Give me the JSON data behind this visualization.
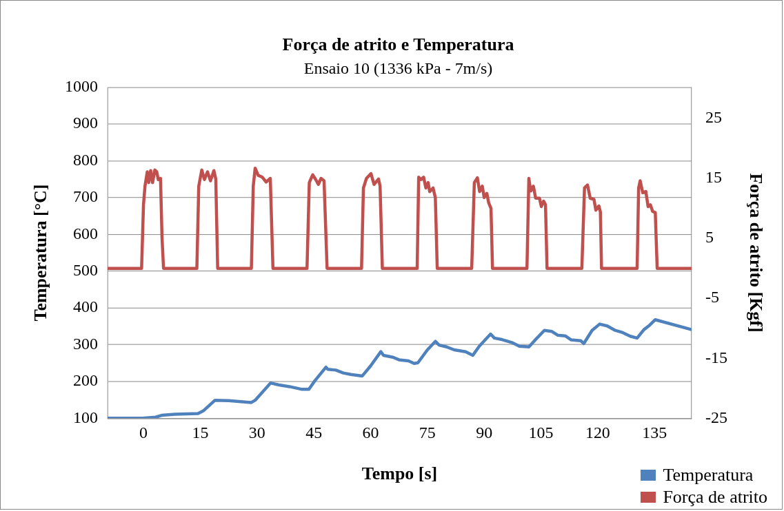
{
  "chart_data": {
    "type": "line",
    "title": "Força de atrito e Temperatura",
    "subtitle": "Ensaio 10 (1336 kPa - 7m/s)",
    "xlabel": "Tempo [s]",
    "ylabel": "Temperatura [°C]",
    "y2label": "Força de atrito [Kgf]",
    "xlim": [
      -9.5,
      144.8
    ],
    "xticks": [
      0,
      15,
      30,
      45,
      60,
      75,
      90,
      105,
      120,
      135
    ],
    "ylim": [
      100,
      1000
    ],
    "yticks": [
      100,
      200,
      300,
      400,
      500,
      600,
      700,
      800,
      900,
      1000
    ],
    "y2lim": [
      -25,
      30.2
    ],
    "y2ticks": [
      -25,
      -15,
      -5,
      5,
      15,
      25
    ],
    "grid": "y",
    "legend": "bottom right",
    "marker": "none",
    "line_style": "solid",
    "series": [
      {
        "name": "Temperatura",
        "color": "#4f81bd",
        "x": [
          -9.5,
          -0.3,
          3.2,
          4.8,
          8.3,
          14.4,
          15.9,
          18.9,
          22.5,
          28.5,
          29.5,
          33.6,
          35.6,
          38.6,
          41.7,
          43.7,
          45.2,
          48.2,
          48.7,
          50.8,
          52.8,
          54.8,
          57.8,
          59.9,
          62.7,
          63.4,
          65.9,
          67.5,
          70.0,
          71.5,
          72.5,
          75.0,
          77.1,
          78.1,
          80.1,
          82.1,
          85.1,
          87.0,
          88.7,
          91.7,
          92.7,
          94.7,
          97.3,
          99.3,
          101.8,
          103.3,
          105.9,
          107.9,
          109.4,
          111.4,
          113.0,
          115.5,
          116.3,
          118.5,
          120.5,
          122.5,
          124.6,
          126.6,
          128.6,
          130.4,
          132.2,
          133.7,
          135.2,
          144.8
        ],
        "values": [
          100,
          100,
          103,
          108,
          111,
          113,
          121,
          149,
          148,
          143,
          149,
          196,
          191,
          186,
          179,
          179,
          201,
          239,
          233,
          231,
          223,
          219,
          215,
          241,
          281,
          271,
          266,
          259,
          256,
          249,
          251,
          286,
          309,
          299,
          294,
          286,
          281,
          271,
          296,
          329,
          318,
          314,
          306,
          296,
          294,
          311,
          339,
          336,
          326,
          324,
          313,
          311,
          303,
          339,
          356,
          351,
          339,
          333,
          323,
          318,
          341,
          353,
          368,
          341
        ]
      },
      {
        "name": "Força de atrito",
        "color": "#c0504d",
        "axis": "y2",
        "x": [
          -9.5,
          -0.5,
          0.0,
          0.4,
          1.0,
          1.4,
          1.9,
          2.4,
          3.0,
          3.5,
          3.9,
          4.5,
          4.9,
          5.3,
          14.1,
          14.6,
          15.4,
          16.1,
          16.9,
          17.7,
          18.6,
          19.1,
          19.6,
          28.5,
          29.0,
          29.5,
          30.3,
          31.4,
          32.4,
          33.5,
          34.2,
          43.2,
          43.8,
          44.7,
          45.5,
          46.2,
          46.9,
          47.7,
          48.5,
          57.6,
          58.1,
          58.9,
          60.1,
          60.9,
          62.1,
          62.5,
          63.1,
          72.3,
          72.7,
          73.3,
          74.0,
          74.6,
          75.2,
          75.6,
          76.5,
          77.1,
          77.6,
          86.7,
          87.4,
          88.2,
          88.8,
          89.5,
          90.0,
          90.7,
          91.2,
          91.8,
          92.2,
          101.3,
          101.8,
          102.3,
          103.0,
          103.6,
          104.6,
          105.1,
          105.7,
          106.2,
          106.6,
          115.8,
          116.5,
          117.3,
          118.0,
          119.0,
          119.5,
          120.3,
          120.7,
          121.0,
          130.4,
          130.8,
          131.2,
          131.9,
          132.7,
          133.3,
          133.9,
          134.5,
          135.2,
          135.7,
          144.8
        ],
        "values": [
          0,
          0,
          10.6,
          13.7,
          16.1,
          14.3,
          16.3,
          14.3,
          16.4,
          16.1,
          14.8,
          15.0,
          5.1,
          0,
          0,
          13.7,
          16.4,
          14.8,
          16.1,
          14.6,
          16.3,
          14.9,
          0,
          0,
          13.7,
          16.7,
          15.5,
          15.2,
          14.4,
          15.0,
          0,
          0,
          14.3,
          15.6,
          14.8,
          14.0,
          15.0,
          14.6,
          0,
          0,
          13.4,
          15.0,
          15.8,
          14.0,
          14.9,
          13.7,
          0,
          0,
          15.2,
          14.8,
          15.2,
          13.4,
          14.3,
          12.8,
          13.4,
          11.8,
          0,
          0,
          14.3,
          15.1,
          12.8,
          13.7,
          11.8,
          12.5,
          10.9,
          10.0,
          0,
          0,
          15.0,
          12.9,
          13.7,
          11.7,
          11.7,
          10.3,
          11.2,
          10.6,
          0,
          0,
          13.4,
          13.9,
          11.7,
          11.5,
          9.7,
          10.4,
          9.4,
          0,
          0,
          13.4,
          14.6,
          12.6,
          12.8,
          10.3,
          10.6,
          9.5,
          9.3,
          0,
          0
        ]
      }
    ]
  }
}
